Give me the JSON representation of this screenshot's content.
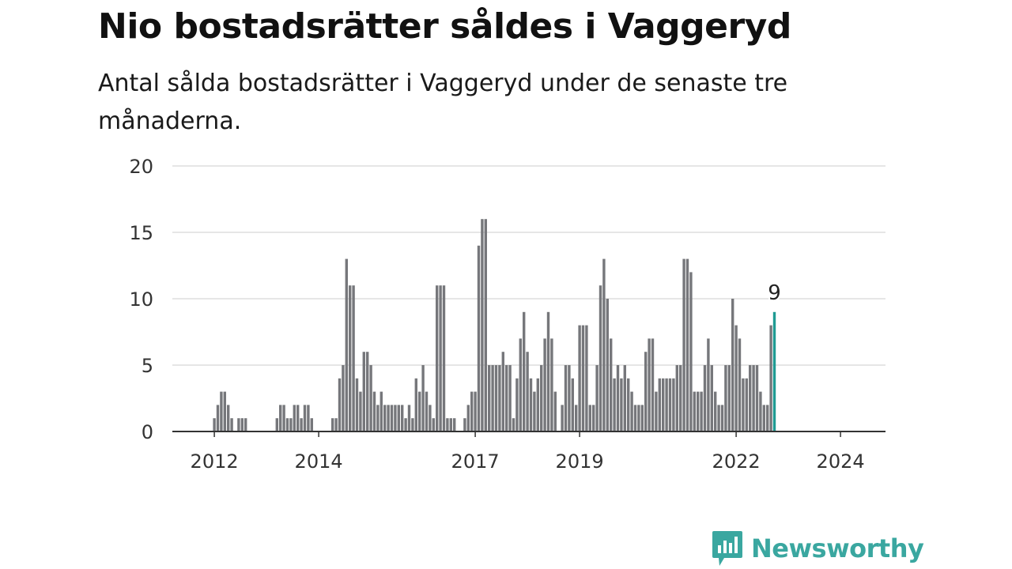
{
  "header": {
    "title": "Nio bostadsrätter såldes i Vaggeryd",
    "subtitle": "Antal sålda bostadsrätter i Vaggeryd under de senaste tre månaderna."
  },
  "brand": {
    "name": "Newsworthy",
    "icon": "newsworthy-logo-icon",
    "color": "#3aa7a0"
  },
  "colors": {
    "bar": "#76777b",
    "highlight": "#1f9b93",
    "grid": "#dddddd",
    "axis": "#333333"
  },
  "chart_data": {
    "type": "bar",
    "title": "Nio bostadsrätter såldes i Vaggeryd",
    "subtitle": "Antal sålda bostadsrätter i Vaggeryd under de senaste tre månaderna.",
    "xlabel": "",
    "ylabel": "",
    "ylim": [
      0,
      20
    ],
    "yticks": [
      0,
      5,
      10,
      15,
      20
    ],
    "grid": true,
    "x_tick_labels": [
      {
        "label": "2012",
        "index": 11
      },
      {
        "label": "2014",
        "index": 41
      },
      {
        "label": "2017",
        "index": 86
      },
      {
        "label": "2019",
        "index": 116
      },
      {
        "label": "2022",
        "index": 161
      },
      {
        "label": "2024",
        "index": 191
      }
    ],
    "last_value_label": "9",
    "values": [
      0,
      0,
      0,
      0,
      0,
      0,
      0,
      0,
      0,
      0,
      0,
      1,
      2,
      3,
      3,
      2,
      1,
      0,
      1,
      1,
      1,
      0,
      0,
      0,
      0,
      0,
      0,
      0,
      0,
      1,
      2,
      2,
      1,
      1,
      2,
      2,
      1,
      2,
      2,
      1,
      0,
      0,
      0,
      0,
      0,
      1,
      1,
      4,
      5,
      13,
      11,
      11,
      4,
      3,
      6,
      6,
      5,
      3,
      2,
      3,
      2,
      2,
      2,
      2,
      2,
      2,
      1,
      2,
      1,
      4,
      3,
      5,
      3,
      2,
      1,
      11,
      11,
      11,
      1,
      1,
      1,
      0,
      0,
      1,
      2,
      3,
      3,
      14,
      16,
      16,
      5,
      5,
      5,
      5,
      6,
      5,
      5,
      1,
      4,
      7,
      9,
      6,
      4,
      3,
      4,
      5,
      7,
      9,
      7,
      3,
      0,
      2,
      5,
      5,
      4,
      2,
      8,
      8,
      8,
      2,
      2,
      5,
      11,
      13,
      10,
      7,
      4,
      5,
      4,
      5,
      4,
      3,
      2,
      2,
      2,
      6,
      7,
      7,
      3,
      4,
      4,
      4,
      4,
      4,
      5,
      5,
      13,
      13,
      12,
      3,
      3,
      3,
      5,
      7,
      5,
      3,
      2,
      2,
      5,
      5,
      10,
      8,
      7,
      4,
      4,
      5,
      5,
      5,
      3,
      2,
      2,
      8,
      9
    ]
  }
}
